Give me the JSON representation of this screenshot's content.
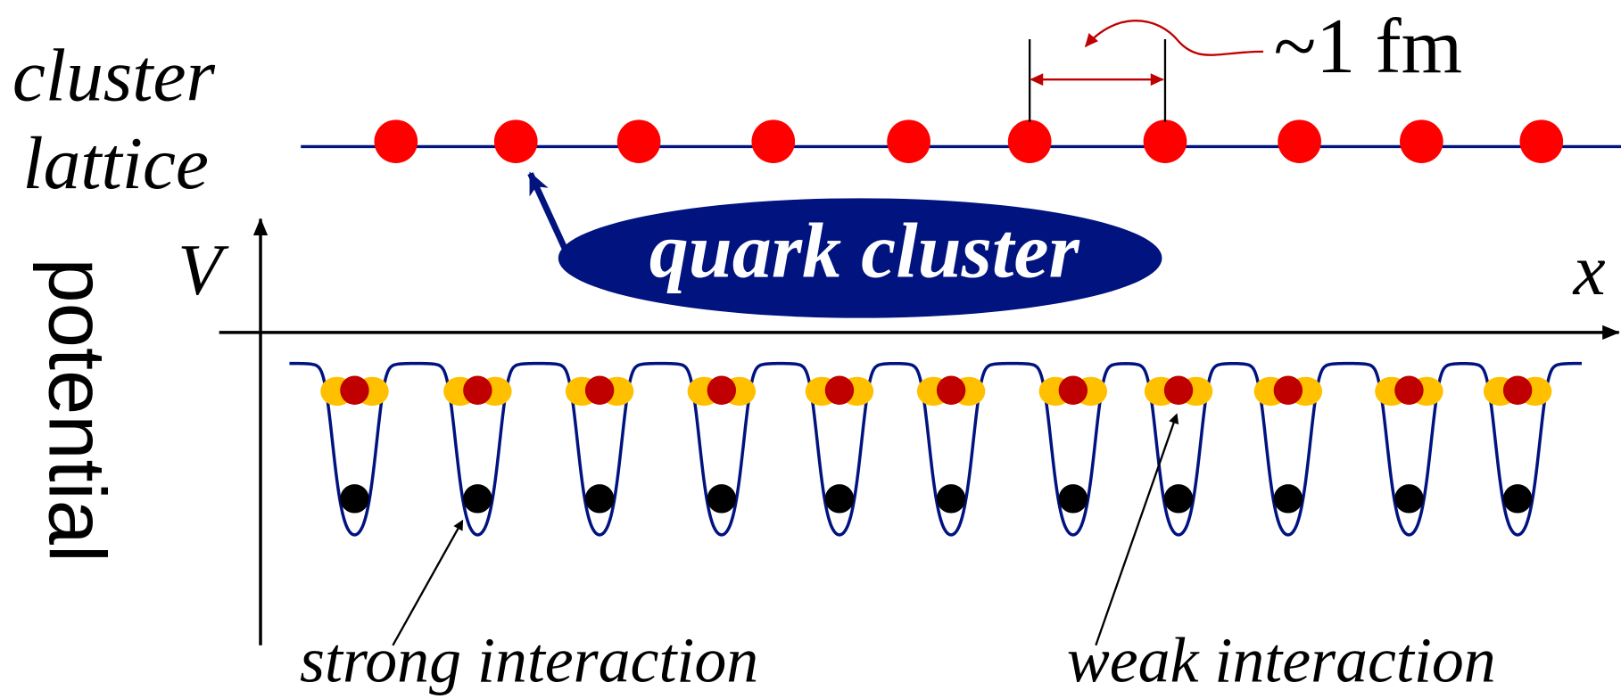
{
  "labels": {
    "cluster": "cluster",
    "lattice": "lattice",
    "spacing": "~1 fm",
    "quark_cluster": "quark cluster",
    "v_axis": "V",
    "x_axis": "x",
    "potential": "potential",
    "strong": "strong interaction",
    "weak": "weak interaction"
  }
}
